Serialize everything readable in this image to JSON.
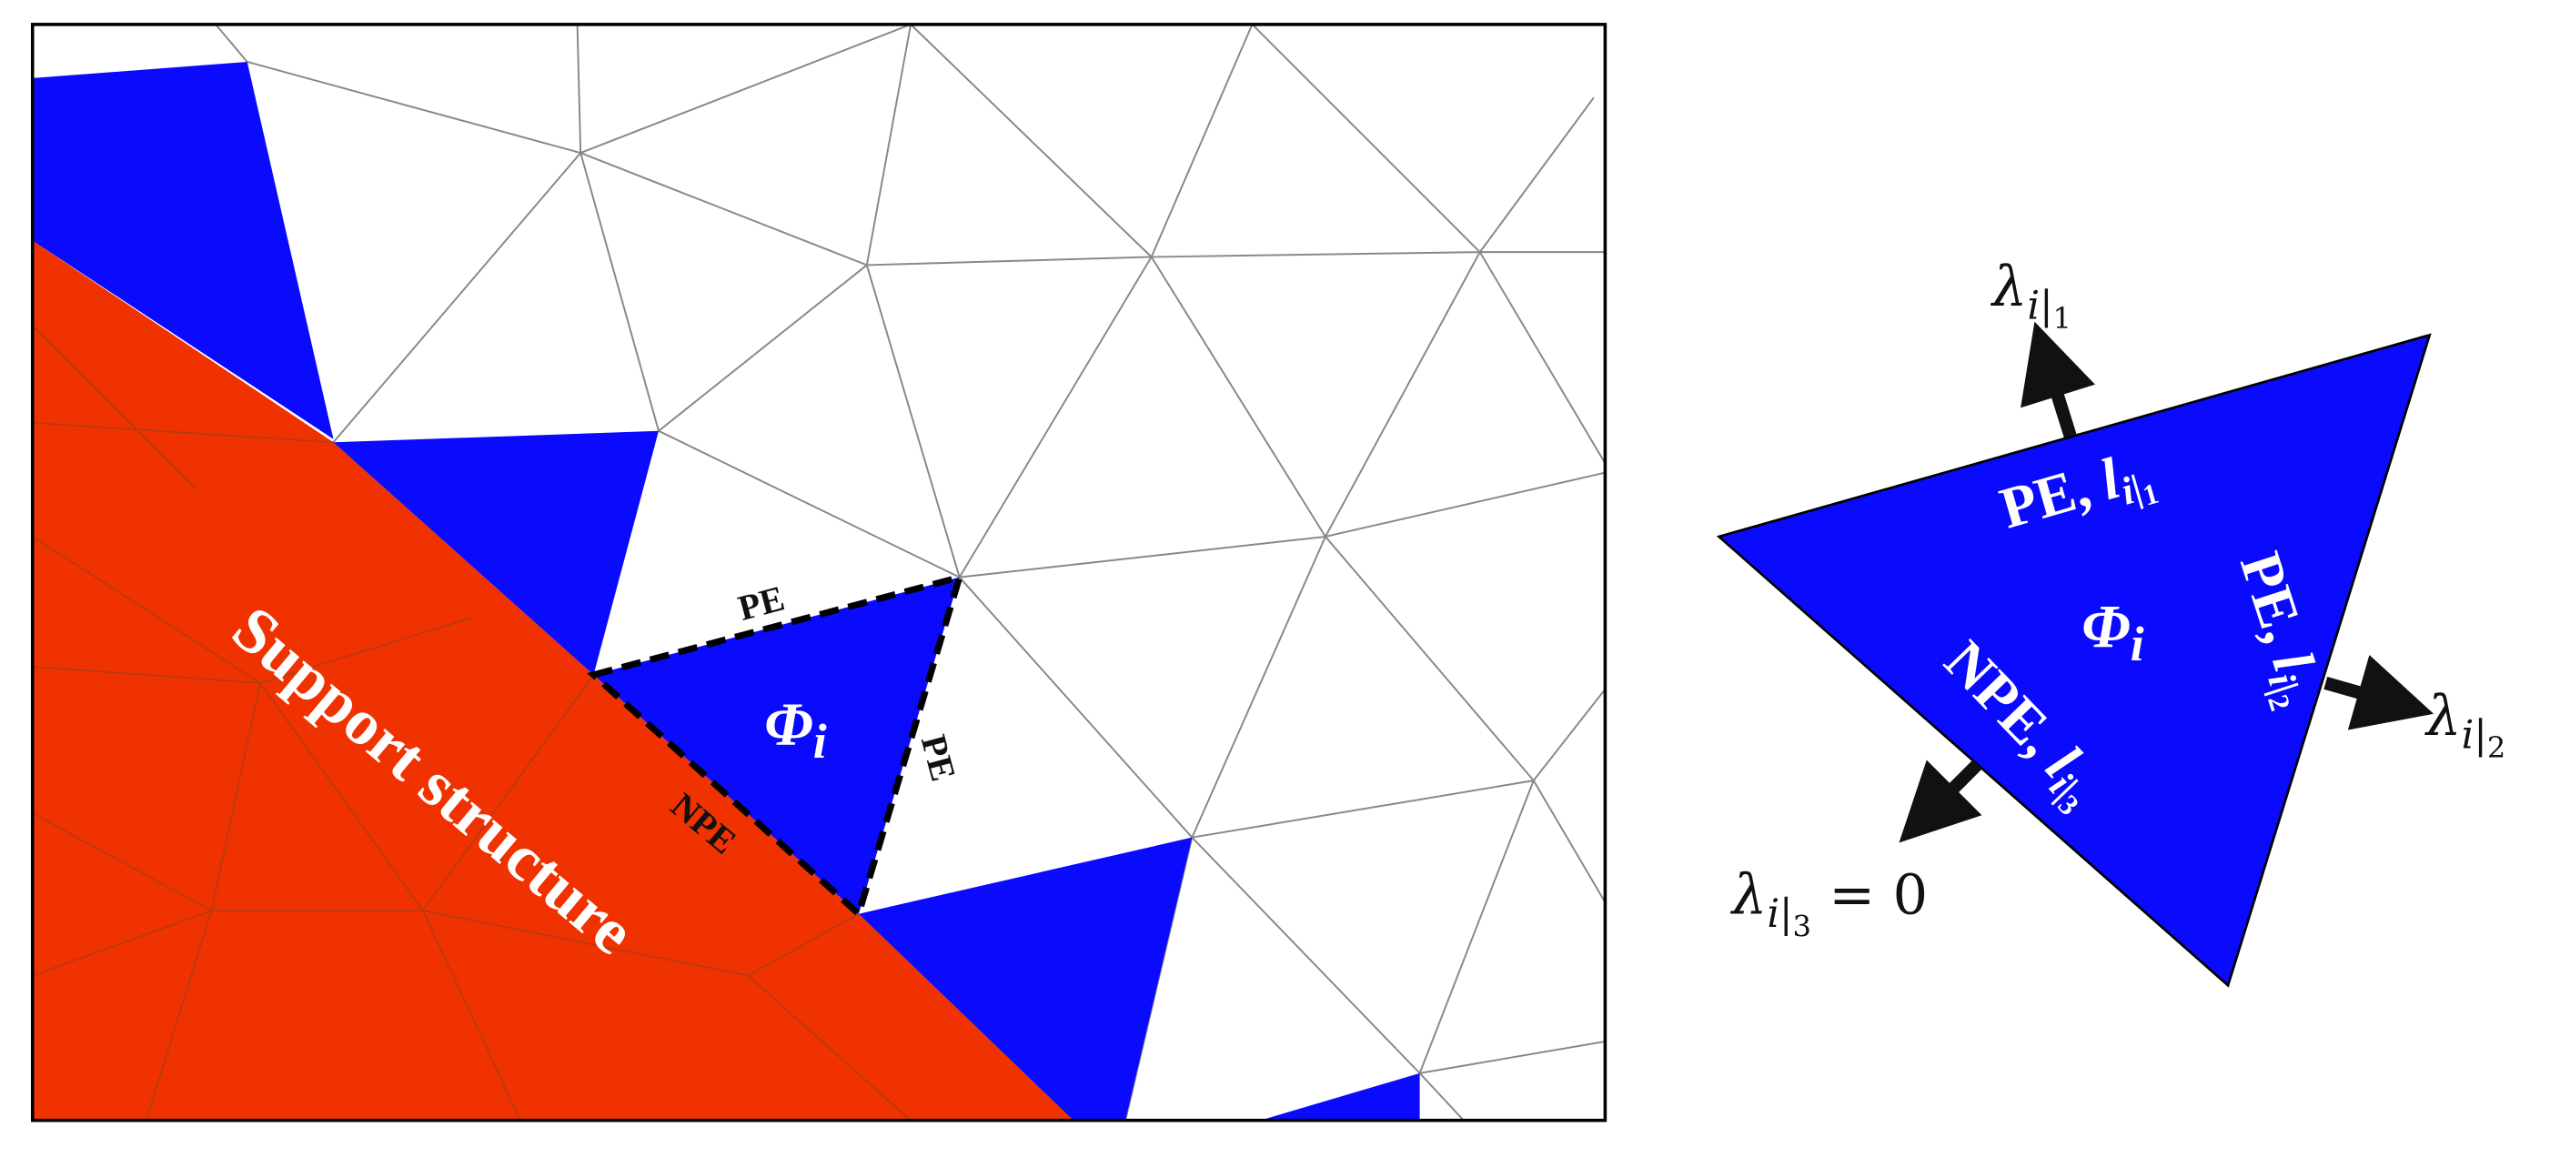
{
  "left_panel": {
    "region_label": "Support structure",
    "edge_labels": [
      "PE",
      "PE",
      "NPE"
    ],
    "element": {
      "symbol": "Φ",
      "sub": "i"
    }
  },
  "right_panel": {
    "element": {
      "symbol": "Φ",
      "sub": "i"
    },
    "edges": [
      {
        "type": "PE, ",
        "symbol": "l",
        "sub": "i|",
        "subsub": "1"
      },
      {
        "type": "PE, ",
        "symbol": "l",
        "sub": "i|",
        "subsub": "2"
      },
      {
        "type": "NPE, ",
        "symbol": "l",
        "sub": "i|",
        "subsub": "3"
      }
    ],
    "multipliers": [
      {
        "symbol": "λ",
        "sub": "i|",
        "subsub": "1",
        "suffix": ""
      },
      {
        "symbol": "λ",
        "sub": "i|",
        "subsub": "2",
        "suffix": ""
      },
      {
        "symbol": "λ",
        "sub": "i|",
        "subsub": "3",
        "suffix": " = 0"
      }
    ]
  }
}
